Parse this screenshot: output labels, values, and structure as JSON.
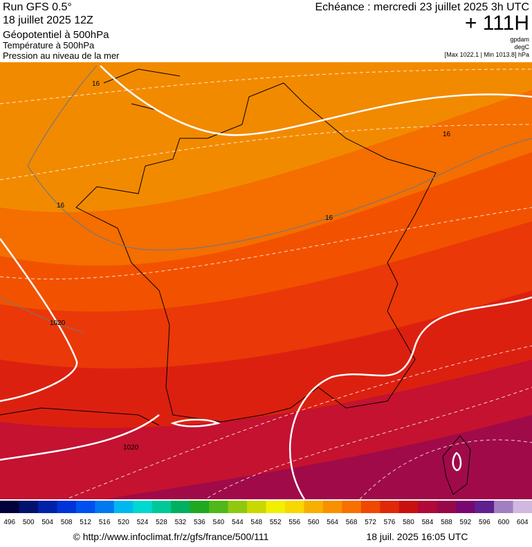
{
  "header": {
    "run": "Run GFS 0.5°",
    "date": "18 juillet 2025 12Z",
    "field1": "Géopotentiel à 500hPa",
    "field2": "Température à 500hPa",
    "field3": "Pression au niveau de la mer",
    "valid": "Echéance : mercredi 23 juillet 2025 3h UTC",
    "lead": "+ 111H",
    "unit1": "gpdam",
    "unit2": "degC",
    "range": "[Max 1022.1 | Min 1013.8] hPa"
  },
  "map": {
    "labels": [
      "16",
      "16",
      "16",
      "16",
      "1020",
      "1020"
    ]
  },
  "colorbar": {
    "ticks": [
      496,
      500,
      504,
      508,
      512,
      516,
      520,
      524,
      528,
      532,
      536,
      540,
      544,
      548,
      552,
      556,
      560,
      564,
      568,
      572,
      576,
      580,
      584,
      588,
      592,
      596,
      600,
      604
    ],
    "colors": [
      "#00003a",
      "#00126e",
      "#0022a8",
      "#0034d8",
      "#0050f0",
      "#0078f0",
      "#00b8f0",
      "#00d8d0",
      "#00c898",
      "#00b060",
      "#20a820",
      "#50b818",
      "#90c810",
      "#c8d800",
      "#f0f000",
      "#f8d800",
      "#f8b000",
      "#f89000",
      "#f87000",
      "#f04800",
      "#e02808",
      "#c81010",
      "#b00838",
      "#980848",
      "#780870",
      "#602090",
      "#a080c0",
      "#d0b8e0"
    ]
  },
  "footer": {
    "url": "© http://www.infoclimat.fr/z/gfs/france/500/111",
    "stamp": "18 juil. 2025 16:05 UTC"
  }
}
